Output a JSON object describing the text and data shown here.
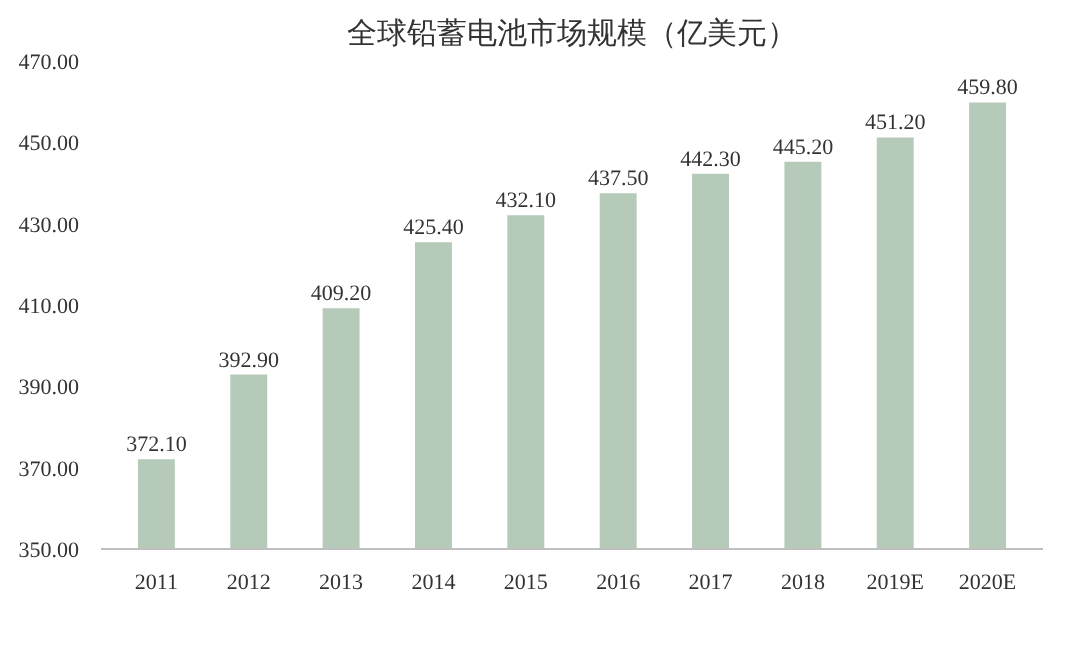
{
  "chart_data": {
    "type": "bar",
    "title": "全球铅蓄电池市场规模（亿美元）",
    "categories": [
      "2011",
      "2012",
      "2013",
      "2014",
      "2015",
      "2016",
      "2017",
      "2018",
      "2019E",
      "2020E"
    ],
    "values": [
      372.1,
      392.9,
      409.2,
      425.4,
      432.1,
      437.5,
      442.3,
      445.2,
      451.2,
      459.8
    ],
    "value_labels": [
      "372.10",
      "392.90",
      "409.20",
      "425.40",
      "432.10",
      "437.50",
      "442.30",
      "445.20",
      "451.20",
      "459.80"
    ],
    "color": "#b5cab8",
    "ylim": [
      350,
      470
    ],
    "yticks": [
      {
        "value": 350,
        "label": "350.00"
      },
      {
        "value": 370,
        "label": "370.00"
      },
      {
        "value": 390,
        "label": "390.00"
      },
      {
        "value": 410,
        "label": "410.00"
      },
      {
        "value": 430,
        "label": "430.00"
      },
      {
        "value": 450,
        "label": "450.00"
      },
      {
        "value": 470,
        "label": "470.00"
      }
    ],
    "grid": false
  }
}
